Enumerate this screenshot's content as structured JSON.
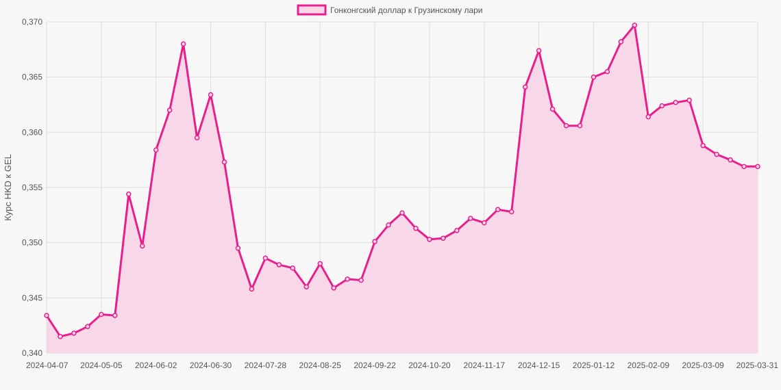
{
  "chart_data": {
    "type": "line",
    "ylabel": "Курс HKD к GEL",
    "ylim": [
      0.34,
      0.37
    ],
    "y_ticks": [
      "0,340",
      "0,345",
      "0,350",
      "0,355",
      "0,360",
      "0,365",
      "0,370"
    ],
    "x_ticks": [
      "2024-04-07",
      "2024-05-05",
      "2024-06-02",
      "2024-06-30",
      "2024-07-28",
      "2024-08-25",
      "2024-09-22",
      "2024-10-20",
      "2024-11-17",
      "2024-12-15",
      "2025-01-12",
      "2025-02-09",
      "2025-03-09",
      "2025-03-31"
    ],
    "grid": true,
    "legend_position": "top-center",
    "series": [
      {
        "name": "Гонконгский доллар к Грузинскому лари",
        "color": "#e91e8c",
        "fill_color": "#f7d7e8",
        "values": [
          0.3434,
          0.3415,
          0.3418,
          0.3424,
          0.3435,
          0.3434,
          0.3544,
          0.3497,
          0.3584,
          0.362,
          0.368,
          0.3595,
          0.3634,
          0.3573,
          0.3495,
          0.3458,
          0.3486,
          0.348,
          0.3477,
          0.346,
          0.3481,
          0.3459,
          0.3467,
          0.3466,
          0.3501,
          0.3516,
          0.3527,
          0.3513,
          0.3503,
          0.3504,
          0.3511,
          0.3522,
          0.3518,
          0.353,
          0.3528,
          0.3641,
          0.3674,
          0.3621,
          0.3606,
          0.3606,
          0.365,
          0.3655,
          0.3682,
          0.3697,
          0.3614,
          0.3624,
          0.3627,
          0.3629,
          0.3588,
          0.358,
          0.3575,
          0.3569,
          0.3569
        ]
      }
    ]
  }
}
